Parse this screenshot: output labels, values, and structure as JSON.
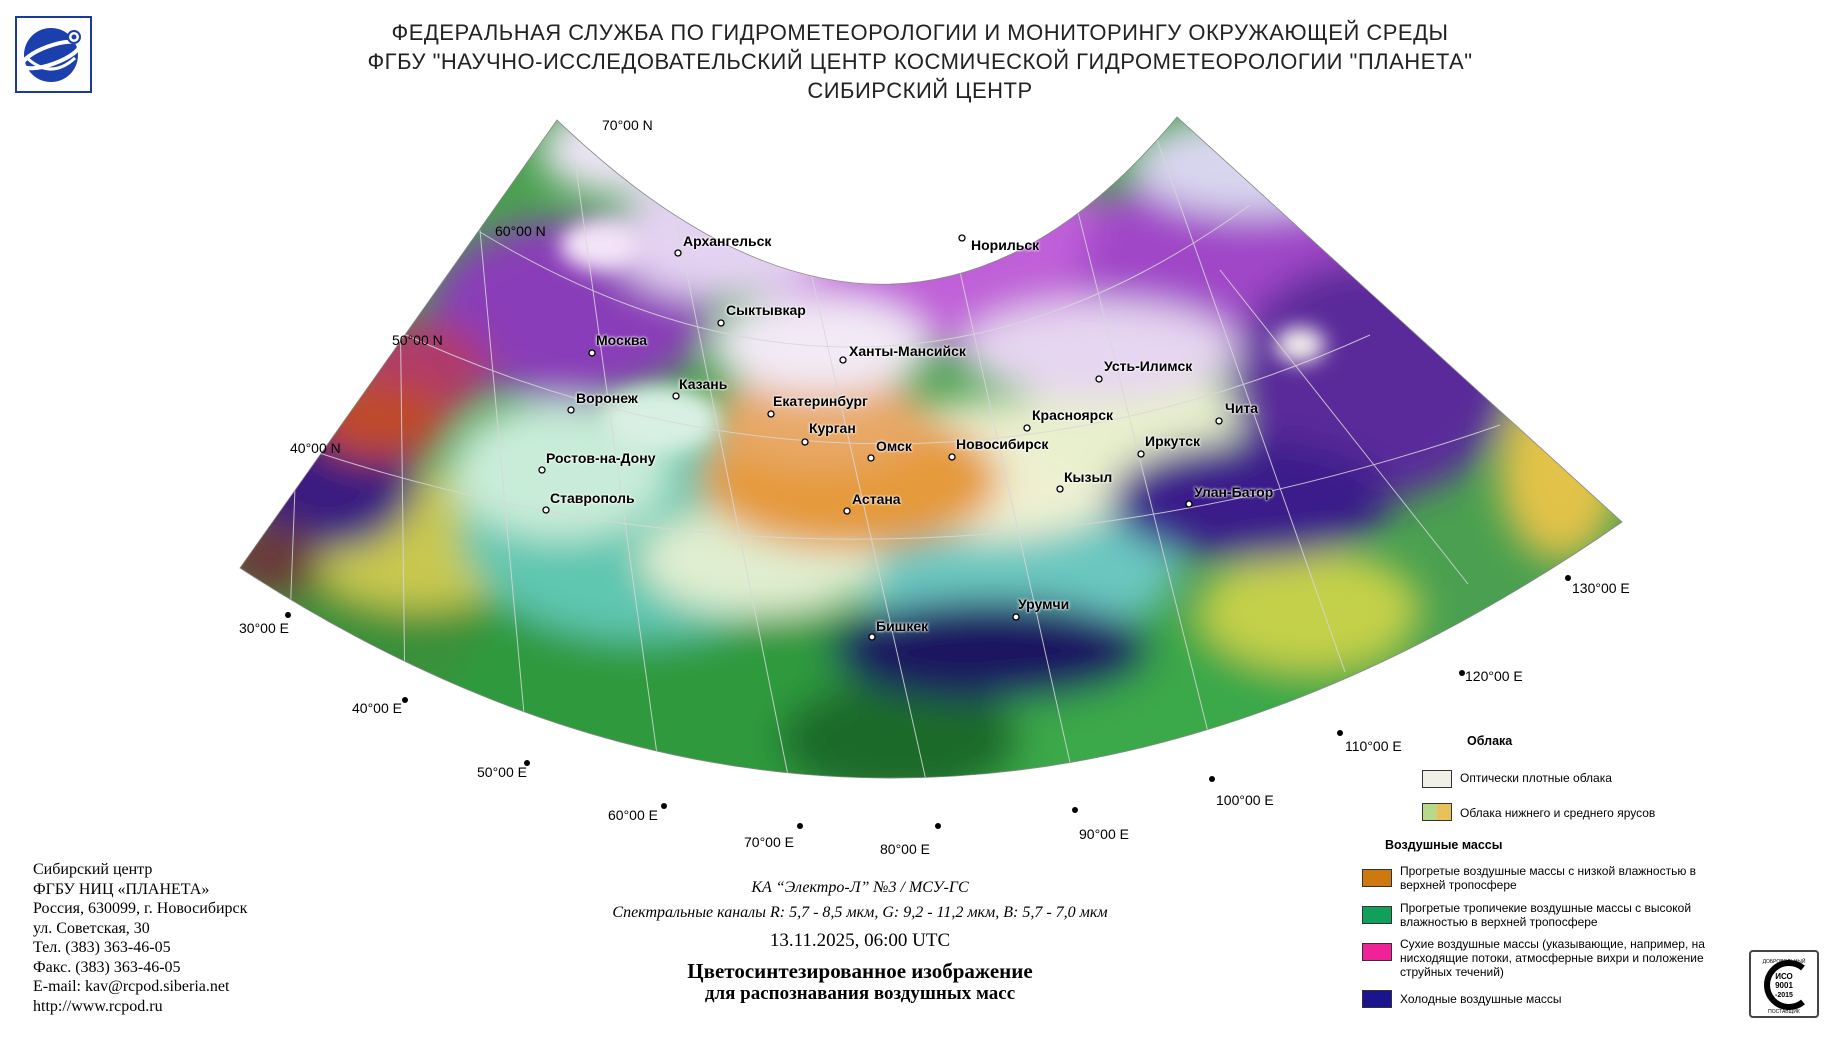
{
  "header": {
    "line1": "ФЕДЕРАЛЬНАЯ СЛУЖБА ПО ГИДРОМЕТЕОРОЛОГИИ И МОНИТОРИНГУ ОКРУЖАЮЩЕЙ СРЕДЫ",
    "line2": "ФГБУ \"НАУЧНО-ИССЛЕДОВАТЕЛЬСКИЙ ЦЕНТР КОСМИЧЕСКОЙ ГИДРОМЕТЕОРОЛОГИИ \"ПЛАНЕТА\"",
    "line3": "СИБИРСКИЙ ЦЕНТР"
  },
  "latitudes": [
    "70°00 N",
    "60°00 N",
    "50°00 N",
    "40°00 N"
  ],
  "longitudes": [
    "30°00 E",
    "40°00 E",
    "50°00 E",
    "60°00 E",
    "70°00 E",
    "80°00 E",
    "90°00 E",
    "100°00 E",
    "110°00 E",
    "120°00 E",
    "130°00 E"
  ],
  "cities": [
    "Архангельск",
    "Норильск",
    "Сыктывкар",
    "Москва",
    "Ханты-Мансийск",
    "Усть-Илимск",
    "Казань",
    "Воронеж",
    "Екатеринбург",
    "Красноярск",
    "Чита",
    "Курган",
    "Омск",
    "Новосибирск",
    "Иркутск",
    "Ростов-на-Дону",
    "Кызыл",
    "Улан-Батор",
    "Ставрополь",
    "Астана",
    "Урумчи",
    "Бишкек"
  ],
  "info": {
    "line1": "Сибирский центр",
    "line2": "ФГБУ НИЦ «ПЛАНЕТА»",
    "line3": "Россия, 630099, г. Новосибирск",
    "line4": "ул. Советская, 30",
    "line5": "Тел. (383) 363-46-05",
    "line6": "Факс. (383) 363-46-05",
    "line7": "E-mail: kav@rcpod.siberia.net",
    "line8": "http://www.rcpod.ru"
  },
  "caption": {
    "satellite": "КА “Электро-Л” №3 / МСУ-ГС",
    "channels": "Спектральные каналы R: 5,7 - 8,5 мкм, G: 9,2 - 11,2 мкм, B: 5,7 - 7,0 мкм",
    "datetime": "13.11.2025, 06:00 UTC",
    "title1": "Цветосинтезированное изображение",
    "title2": "для распознавания воздушных масс"
  },
  "legend": {
    "clouds_title": "Облака",
    "dense_clouds": "Оптически плотные облака",
    "low_mid_clouds": "Облака нижнего и среднего ярусов",
    "air_title": "Воздушные массы",
    "warm_low": "Прогретые воздушные массы с низкой влажностью в верхней тропосфере",
    "warm_tropical": "Прогретые тропичекие воздушные массы с высокой влажностью в верхней тропосфере",
    "dry": "Сухие воздушные массы (указывающие, например, на нисходящие потоки, атмосферные вихри и положение струйных течений)",
    "cold": "Холодные воздушные массы",
    "colors": {
      "dense": "#f1f0e6",
      "low_green": "#b7d98a",
      "low_yellow": "#e9c15a",
      "warm_low": "#cc7a10",
      "warm_tropical": "#11a05a",
      "dry": "#f0229a",
      "cold": "#1a148f"
    }
  },
  "cert": {
    "top": "ДОБРОВОЛЬНЫЙ",
    "iso": "ИСО",
    "num": "9001",
    "year": "-2015",
    "bottom": "ПОСТАВЩИК"
  }
}
